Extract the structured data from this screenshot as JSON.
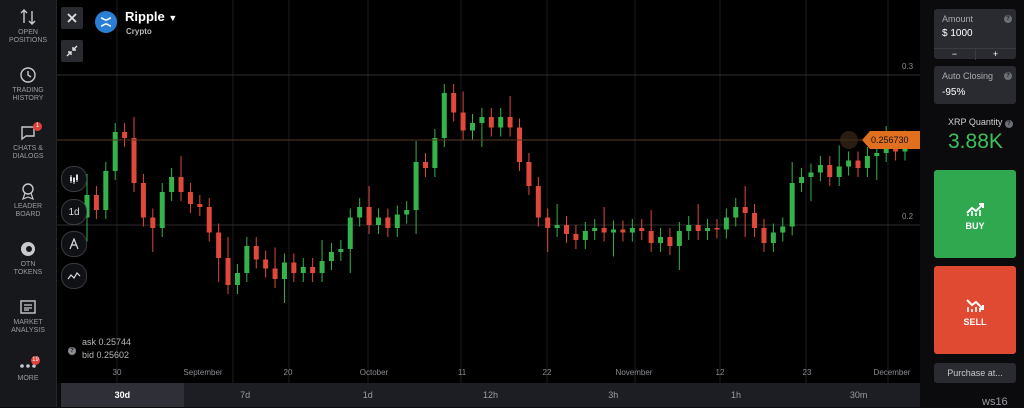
{
  "sidebar": {
    "items": [
      {
        "label_1": "OPEN",
        "label_2": "POSITIONS"
      },
      {
        "label_1": "TRADING",
        "label_2": "HISTORY"
      },
      {
        "label_1": "CHATS &",
        "label_2": "DIALOGS",
        "badge": "1"
      },
      {
        "label_1": "LEADER",
        "label_2": "BOARD"
      },
      {
        "label_1": "OTN",
        "label_2": "TOKENS"
      },
      {
        "label_1": "MARKET",
        "label_2": "ANALYSIS"
      },
      {
        "label_1": "MORE",
        "label_2": "",
        "badge": "19"
      }
    ]
  },
  "asset": {
    "name": "Ripple",
    "category": "Crypto"
  },
  "chart": {
    "price_label": "0.256730",
    "ask": "ask 0.25744",
    "bid": "bid 0.25602",
    "tool_interval": "1d",
    "y_ticks": [
      "0.3",
      "0.2"
    ],
    "x_ticks": [
      "30",
      "September",
      "20",
      "October",
      "11",
      "22",
      "November",
      "12",
      "23",
      "December"
    ]
  },
  "timeframes": [
    "30d",
    "7d",
    "1d",
    "12h",
    "3h",
    "1h",
    "30m"
  ],
  "active_timeframe": "30d",
  "amount": {
    "label": "Amount",
    "value": "$ 1000",
    "minus": "−",
    "plus": "+"
  },
  "auto_closing": {
    "label": "Auto Closing",
    "value": "-95%"
  },
  "quantity": {
    "label": "XRP Quantity",
    "value": "3.88K"
  },
  "buy": {
    "label": "BUY",
    "color": "#2fa84f"
  },
  "sell": {
    "label": "SELL",
    "color": "#e04a32"
  },
  "purchase": {
    "label": "Purchase at..."
  },
  "watermark": "ws16",
  "colors": {
    "up": "#33b34a",
    "down": "#e0483a",
    "price_tag": "#e0701e"
  }
}
